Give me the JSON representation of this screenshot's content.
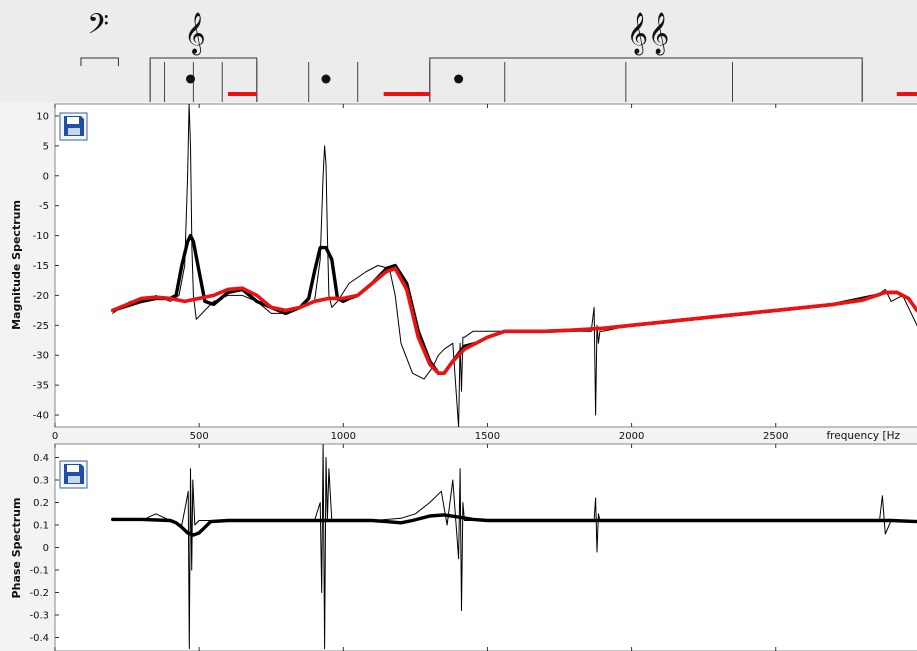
{
  "top_strip": {
    "clef_bass_symbol": "𝄢",
    "clef_treble_symbol": "𝄞",
    "clef_double_treble_symbol": "𝄞𝄞",
    "markers_hz": [
      470,
      940,
      1400
    ],
    "red_segments_hz": [
      [
        600,
        700
      ],
      [
        1140,
        1300
      ],
      [
        2920,
        3000
      ]
    ],
    "brackets_hz": [
      [
        90,
        220
      ],
      [
        330,
        700
      ],
      [
        1300,
        2800
      ]
    ],
    "divisions_hz": [
      [
        330,
        380,
        480,
        580,
        700
      ],
      [
        880,
        1050
      ],
      [
        1300,
        1560,
        1980,
        2350,
        2800
      ]
    ]
  },
  "magnitude_panel": {
    "ylabel": "Magnitude Spectrum",
    "save_icon": "floppy-disk-icon",
    "xlabel": "frequency [Hz",
    "x_tick_labels": [
      "0",
      "500",
      "1000",
      "1500",
      "2000",
      "2500"
    ],
    "y_tick_labels": [
      "10",
      "5",
      "0",
      "-5",
      "-10",
      "-15",
      "-20",
      "-25",
      "-30",
      "-35",
      "-40"
    ]
  },
  "phase_panel": {
    "ylabel": "Phase Spectrum",
    "save_icon": "floppy-disk-icon",
    "y_tick_labels": [
      "0.4",
      "0.3",
      "0.2",
      "0.1",
      "0",
      "-0.1",
      "-0.2",
      "-0.3",
      "-0.4"
    ]
  },
  "chart_data": [
    {
      "type": "line",
      "ylabel": "Magnitude Spectrum",
      "xlabel": "frequency [Hz",
      "xlim": [
        0,
        2990
      ],
      "ylim": [
        -42,
        12
      ],
      "x_ticks": [
        0,
        500,
        1000,
        1500,
        2000,
        2500
      ],
      "y_ticks": [
        10,
        5,
        0,
        -5,
        -10,
        -15,
        -20,
        -25,
        -30,
        -35,
        -40
      ],
      "series": [
        {
          "color": "#000000",
          "style": "thin",
          "x": [
            200,
            260,
            300,
            350,
            400,
            430,
            450,
            460,
            465,
            470,
            475,
            480,
            490,
            510,
            550,
            600,
            650,
            700,
            750,
            800,
            850,
            900,
            920,
            930,
            935,
            940,
            945,
            950,
            960,
            980,
            1020,
            1080,
            1120,
            1160,
            1180,
            1200,
            1240,
            1280,
            1310,
            1330,
            1350,
            1380,
            1400,
            1405,
            1410,
            1415,
            1420,
            1450,
            1500,
            1600,
            1700,
            1800,
            1860,
            1870,
            1875,
            1880,
            1885,
            1890,
            1900,
            2000,
            2100,
            2200,
            2300,
            2400,
            2500,
            2600,
            2700,
            2760,
            2800,
            2850,
            2880,
            2900,
            2940,
            2990
          ],
          "y": [
            -23,
            -21,
            -21,
            -20,
            -21,
            -20,
            -15,
            0,
            12,
            5,
            -12,
            -20,
            -24,
            -23,
            -21,
            -20,
            -20,
            -21,
            -23,
            -23,
            -22,
            -21,
            -14,
            0,
            5,
            2,
            -10,
            -20,
            -22,
            -21,
            -18,
            -16,
            -15,
            -15.5,
            -20,
            -28,
            -33,
            -34,
            -32,
            -30,
            -29,
            -28,
            -42,
            -28,
            -36,
            -27,
            -27,
            -26,
            -26,
            -26,
            -26,
            -26,
            -26,
            -22,
            -40,
            -25,
            -28,
            -26,
            -26,
            -25,
            -24.5,
            -24,
            -23.5,
            -23,
            -22.5,
            -22,
            -21.5,
            -21,
            -21,
            -20,
            -19,
            -21,
            -20,
            -25
          ]
        },
        {
          "color": "#000000",
          "style": "thick",
          "x": [
            200,
            300,
            350,
            400,
            420,
            440,
            460,
            470,
            480,
            500,
            520,
            550,
            600,
            650,
            700,
            750,
            800,
            850,
            880,
            900,
            920,
            940,
            960,
            980,
            1000,
            1020,
            1050,
            1100,
            1150,
            1180,
            1220,
            1260,
            1300,
            1330,
            1350,
            1380,
            1420,
            1460,
            1500,
            1560,
            1600,
            1700,
            1800,
            1900,
            2000,
            2100,
            2200,
            2300,
            2400,
            2500,
            2600,
            2700,
            2800,
            2850,
            2880,
            2920,
            2960,
            2990
          ],
          "y": [
            -22.5,
            -21,
            -20.5,
            -20.5,
            -20,
            -15,
            -11,
            -10,
            -11,
            -16,
            -21,
            -21.5,
            -19.5,
            -19,
            -21,
            -22,
            -23,
            -22,
            -20.5,
            -16,
            -12,
            -12,
            -14,
            -20.5,
            -21,
            -20.5,
            -20,
            -18,
            -15.5,
            -15,
            -18,
            -26,
            -31,
            -33,
            -33,
            -31,
            -28.5,
            -28,
            -27,
            -26,
            -26,
            -26,
            -25.8,
            -25.5,
            -25,
            -24.5,
            -24,
            -23.5,
            -23,
            -22.5,
            -22,
            -21.5,
            -20.5,
            -20,
            -19.5,
            -19.5,
            -20.5,
            -22.5
          ]
        },
        {
          "color": "#ee1111",
          "style": "thick",
          "x": [
            200,
            300,
            350,
            400,
            450,
            500,
            550,
            600,
            650,
            700,
            750,
            800,
            850,
            900,
            950,
            1000,
            1050,
            1100,
            1150,
            1180,
            1220,
            1260,
            1300,
            1330,
            1350,
            1380,
            1420,
            1460,
            1500,
            1560,
            1600,
            1700,
            1800,
            1900,
            2000,
            2100,
            2200,
            2300,
            2400,
            2500,
            2600,
            2700,
            2800,
            2850,
            2880,
            2920,
            2960,
            2990
          ],
          "y": [
            -22.5,
            -20.5,
            -20.3,
            -20.5,
            -21,
            -20.5,
            -20,
            -19,
            -18.8,
            -20,
            -22,
            -22.5,
            -22,
            -21,
            -20.5,
            -20.5,
            -20,
            -18,
            -16,
            -15.5,
            -19,
            -27,
            -31.5,
            -33,
            -33,
            -31,
            -29,
            -28,
            -27,
            -26,
            -26,
            -26,
            -25.8,
            -25.5,
            -25,
            -24.5,
            -24,
            -23.5,
            -23,
            -22.5,
            -22,
            -21.5,
            -20.8,
            -20,
            -19.5,
            -19.5,
            -20.5,
            -22.5
          ]
        }
      ]
    },
    {
      "type": "line",
      "ylabel": "Phase Spectrum",
      "xlim": [
        0,
        2990
      ],
      "ylim": [
        -0.46,
        0.46
      ],
      "x_ticks": [
        0,
        500,
        1000,
        1500,
        2000,
        2500
      ],
      "y_ticks": [
        0.4,
        0.3,
        0.2,
        0.1,
        0,
        -0.1,
        -0.2,
        -0.3,
        -0.4
      ],
      "series": [
        {
          "color": "#000000",
          "style": "thin",
          "x": [
            200,
            300,
            350,
            400,
            440,
            455,
            462,
            466,
            470,
            474,
            478,
            485,
            500,
            550,
            600,
            700,
            800,
            900,
            920,
            925,
            930,
            935,
            940,
            945,
            950,
            960,
            1000,
            1100,
            1200,
            1250,
            1300,
            1340,
            1360,
            1380,
            1400,
            1405,
            1410,
            1415,
            1420,
            1430,
            1500,
            1600,
            1700,
            1800,
            1870,
            1875,
            1880,
            1885,
            1890,
            1900,
            2000,
            2100,
            2200,
            2300,
            2400,
            2500,
            2600,
            2700,
            2800,
            2860,
            2870,
            2880,
            2900,
            2990
          ],
          "y": [
            0.13,
            0.12,
            0.15,
            0.12,
            0.1,
            0.2,
            0.25,
            -0.45,
            0.35,
            -0.1,
            0.3,
            0.1,
            0.12,
            0.12,
            0.12,
            0.12,
            0.12,
            0.12,
            0.2,
            -0.2,
            0.46,
            -0.45,
            0.4,
            0.12,
            0.35,
            0.12,
            0.12,
            0.12,
            0.13,
            0.15,
            0.2,
            0.25,
            0.1,
            0.3,
            -0.05,
            0.35,
            -0.28,
            0.2,
            0.12,
            0.12,
            0.12,
            0.12,
            0.12,
            0.12,
            0.12,
            0.22,
            -0.02,
            0.15,
            0.12,
            0.12,
            0.12,
            0.12,
            0.12,
            0.12,
            0.12,
            0.12,
            0.12,
            0.12,
            0.12,
            0.12,
            0.23,
            0.06,
            0.12,
            0.12
          ]
        },
        {
          "color": "#000000",
          "style": "thick",
          "x": [
            200,
            300,
            400,
            420,
            440,
            460,
            480,
            500,
            520,
            540,
            600,
            700,
            800,
            900,
            1000,
            1100,
            1150,
            1200,
            1240,
            1300,
            1350,
            1400,
            1450,
            1500,
            1600,
            1700,
            1800,
            1900,
            2000,
            2100,
            2200,
            2300,
            2400,
            2500,
            2600,
            2700,
            2800,
            2900,
            2990
          ],
          "y": [
            0.125,
            0.125,
            0.12,
            0.11,
            0.09,
            0.065,
            0.055,
            0.065,
            0.09,
            0.115,
            0.12,
            0.12,
            0.12,
            0.12,
            0.12,
            0.12,
            0.115,
            0.11,
            0.12,
            0.14,
            0.145,
            0.135,
            0.125,
            0.12,
            0.12,
            0.12,
            0.12,
            0.12,
            0.12,
            0.12,
            0.12,
            0.12,
            0.12,
            0.12,
            0.12,
            0.12,
            0.12,
            0.12,
            0.115
          ]
        }
      ]
    }
  ]
}
